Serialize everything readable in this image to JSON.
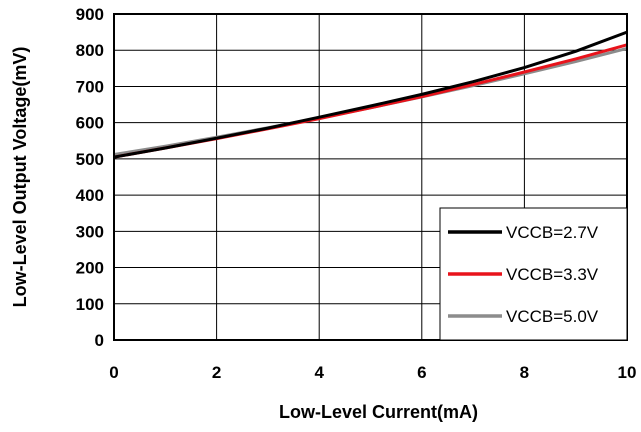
{
  "chart_data": {
    "type": "line",
    "title": "",
    "xlabel": "Low-Level Current(mA)",
    "ylabel": "Low-Level Output Voltage(mV)",
    "xlim": [
      0,
      10
    ],
    "ylim": [
      0,
      900
    ],
    "xticks": [
      0,
      2,
      4,
      6,
      8,
      10
    ],
    "yticks": [
      0,
      100,
      200,
      300,
      400,
      500,
      600,
      700,
      800,
      900
    ],
    "grid": true,
    "legend_position": "bottom-right",
    "x": [
      0,
      1,
      2,
      3,
      4,
      5,
      6,
      7,
      8,
      9,
      10
    ],
    "series": [
      {
        "name": "VCCB=2.7V",
        "color": "#000000",
        "values": [
          505,
          530,
          557,
          585,
          615,
          646,
          678,
          713,
          752,
          797,
          850
        ]
      },
      {
        "name": "VCCB=3.3V",
        "color": "#e8131b",
        "values": [
          505,
          530,
          556,
          583,
          611,
          641,
          672,
          705,
          740,
          776,
          815
        ]
      },
      {
        "name": "VCCB=5.0V",
        "color": "#8c8c8c",
        "values": [
          512,
          535,
          560,
          586,
          613,
          641,
          671,
          702,
          735,
          769,
          805
        ]
      }
    ]
  }
}
